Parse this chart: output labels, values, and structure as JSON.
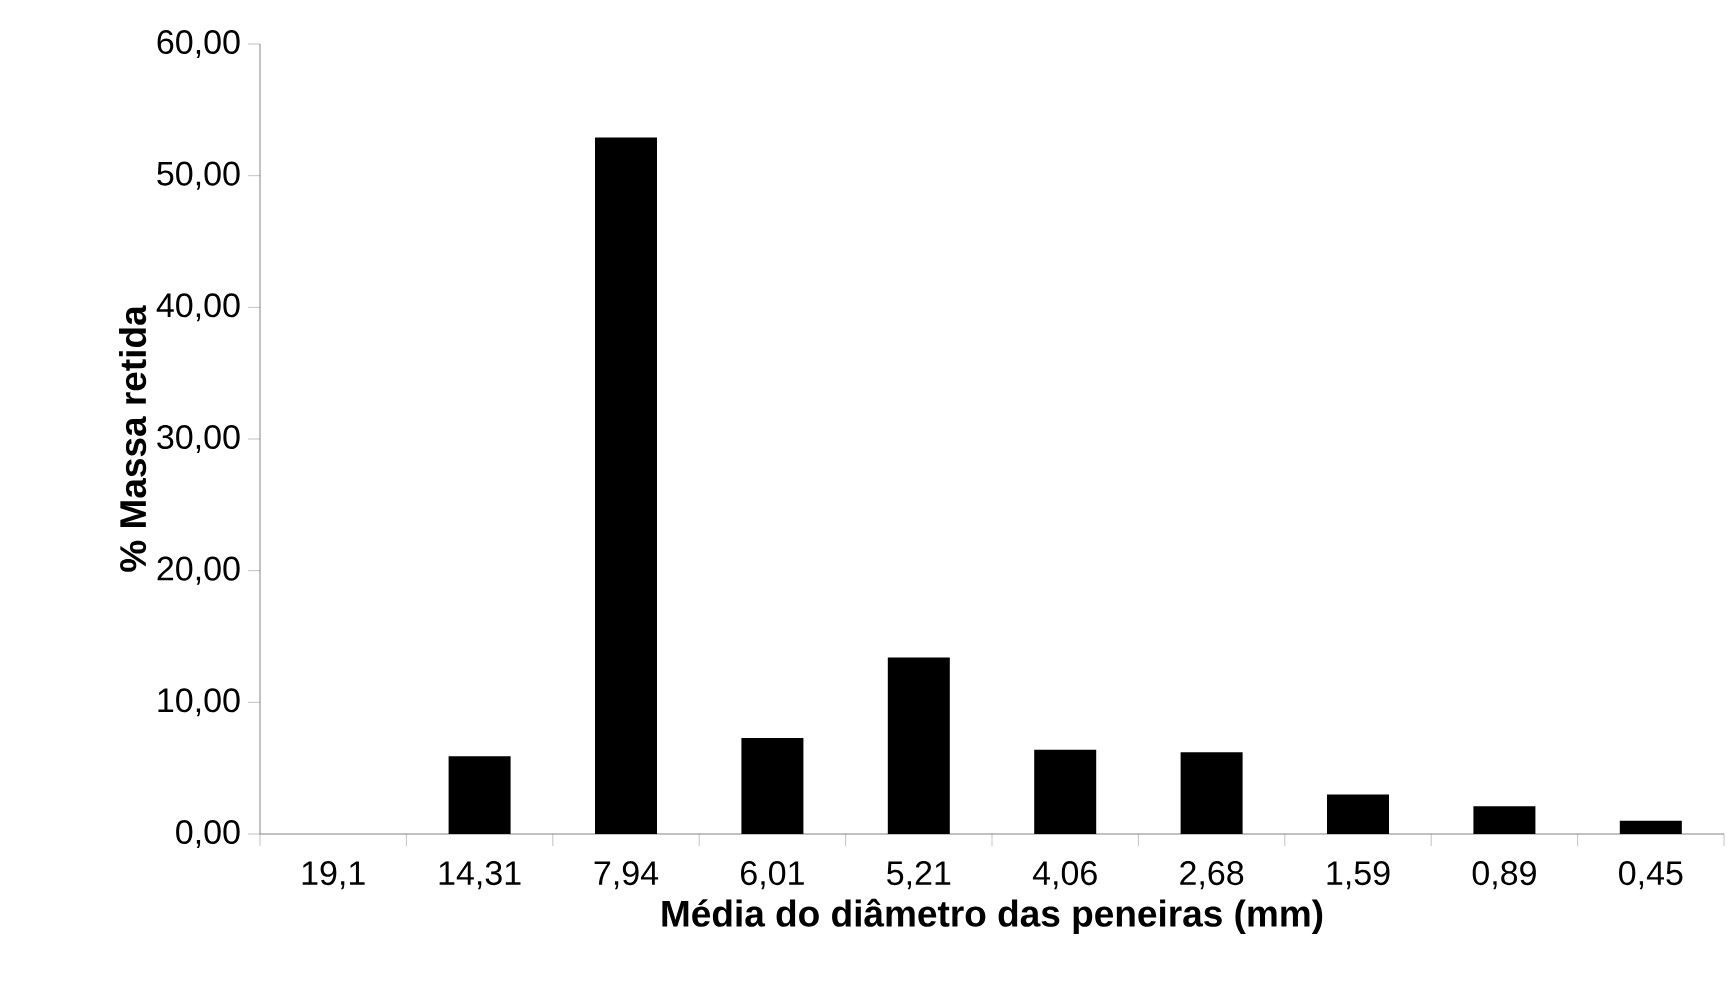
{
  "chart_data": {
    "type": "bar",
    "xlabel": "Média do diâmetro das peneiras (mm)",
    "ylabel": "% Massa retida",
    "categories": [
      "19,1",
      "14,31",
      "7,94",
      "6,01",
      "5,21",
      "4,06",
      "2,68",
      "1,59",
      "0,89",
      "0,45"
    ],
    "values": [
      0,
      5.9,
      52.9,
      7.3,
      13.4,
      6.4,
      6.2,
      3.0,
      2.1,
      1.0
    ],
    "color": "#000000",
    "ylim": [
      0,
      60
    ],
    "yticks": [
      {
        "value": 0,
        "label": "0,00"
      },
      {
        "value": 10,
        "label": "10,00"
      },
      {
        "value": 20,
        "label": "20,00"
      },
      {
        "value": 30,
        "label": "30,00"
      },
      {
        "value": 40,
        "label": "40,00"
      },
      {
        "value": 50,
        "label": "50,00"
      },
      {
        "value": 60,
        "label": "60,00"
      }
    ],
    "grid": false
  }
}
